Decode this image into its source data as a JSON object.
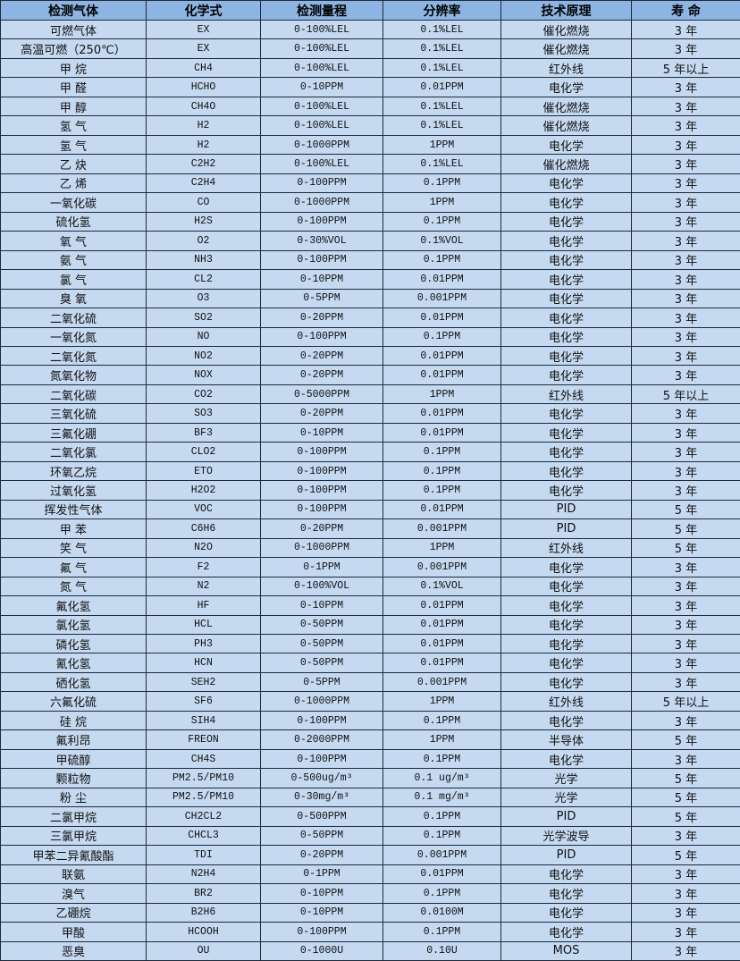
{
  "headers": [
    "检测气体",
    "化学式",
    "检测量程",
    "分辨率",
    "技术原理",
    "寿 命"
  ],
  "rows": [
    [
      "可燃气体",
      "EX",
      "0-100%LEL",
      "0.1%LEL",
      "催化燃烧",
      "3 年"
    ],
    [
      "高温可燃（250℃）",
      "EX",
      "0-100%LEL",
      "0.1%LEL",
      "催化燃烧",
      "3 年"
    ],
    [
      "甲 烷",
      "CH4",
      "0-100%LEL",
      "0.1%LEL",
      "红外线",
      "5 年以上"
    ],
    [
      "甲 醛",
      "HCHO",
      "0-10PPM",
      "0.01PPM",
      "电化学",
      "3 年"
    ],
    [
      "甲 醇",
      "CH4O",
      "0-100%LEL",
      "0.1%LEL",
      "催化燃烧",
      "3 年"
    ],
    [
      "氢 气",
      "H2",
      "0-100%LEL",
      "0.1%LEL",
      "催化燃烧",
      "3 年"
    ],
    [
      "氢 气",
      "H2",
      "0-1000PPM",
      "1PPM",
      "电化学",
      "3 年"
    ],
    [
      "乙 炔",
      "C2H2",
      "0-100%LEL",
      "0.1%LEL",
      "催化燃烧",
      "3 年"
    ],
    [
      "乙 烯",
      "C2H4",
      "0-100PPM",
      "0.1PPM",
      "电化学",
      "3 年"
    ],
    [
      "一氧化碳",
      "CO",
      "0-1000PPM",
      "1PPM",
      "电化学",
      "3 年"
    ],
    [
      "硫化氢",
      "H2S",
      "0-100PPM",
      "0.1PPM",
      "电化学",
      "3 年"
    ],
    [
      "氧 气",
      "O2",
      "0-30%VOL",
      "0.1%VOL",
      "电化学",
      "3 年"
    ],
    [
      "氨 气",
      "NH3",
      "0-100PPM",
      "0.1PPM",
      "电化学",
      "3 年"
    ],
    [
      "氯 气",
      "CL2",
      "0-10PPM",
      "0.01PPM",
      "电化学",
      "3 年"
    ],
    [
      "臭 氧",
      "O3",
      "0-5PPM",
      "0.001PPM",
      "电化学",
      "3 年"
    ],
    [
      "二氧化硫",
      "SO2",
      "0-20PPM",
      "0.01PPM",
      "电化学",
      "3 年"
    ],
    [
      "一氧化氮",
      "NO",
      "0-100PPM",
      "0.1PPM",
      "电化学",
      "3 年"
    ],
    [
      "二氧化氮",
      "NO2",
      "0-20PPM",
      "0.01PPM",
      "电化学",
      "3 年"
    ],
    [
      "氮氧化物",
      "NOX",
      "0-20PPM",
      "0.01PPM",
      "电化学",
      "3 年"
    ],
    [
      "二氧化碳",
      "CO2",
      "0-5000PPM",
      "1PPM",
      "红外线",
      "5 年以上"
    ],
    [
      "三氧化硫",
      "SO3",
      "0-20PPM",
      "0.01PPM",
      "电化学",
      "3 年"
    ],
    [
      "三氟化硼",
      "BF3",
      "0-10PPM",
      "0.01PPM",
      "电化学",
      "3 年"
    ],
    [
      "二氧化氯",
      "CLO2",
      "0-100PPM",
      "0.1PPM",
      "电化学",
      "3 年"
    ],
    [
      "环氧乙烷",
      "ETO",
      "0-100PPM",
      "0.1PPM",
      "电化学",
      "3 年"
    ],
    [
      "过氧化氢",
      "H2O2",
      "0-100PPM",
      "0.1PPM",
      "电化学",
      "3 年"
    ],
    [
      "挥发性气体",
      "VOC",
      "0-100PPM",
      "0.01PPM",
      "PID",
      "5 年"
    ],
    [
      "甲 苯",
      "C6H6",
      "0-20PPM",
      "0.001PPM",
      "PID",
      "5 年"
    ],
    [
      "笑 气",
      "N2O",
      "0-1000PPM",
      "1PPM",
      "红外线",
      "5 年"
    ],
    [
      "氟 气",
      "F2",
      "0-1PPM",
      "0.001PPM",
      "电化学",
      "3 年"
    ],
    [
      "氮 气",
      "N2",
      "0-100%VOL",
      "0.1%VOL",
      "电化学",
      "3 年"
    ],
    [
      "氟化氢",
      "HF",
      "0-10PPM",
      "0.01PPM",
      "电化学",
      "3 年"
    ],
    [
      "氯化氢",
      "HCL",
      "0-50PPM",
      "0.01PPM",
      "电化学",
      "3 年"
    ],
    [
      "磷化氢",
      "PH3",
      "0-50PPM",
      "0.01PPM",
      "电化学",
      "3 年"
    ],
    [
      "氰化氢",
      "HCN",
      "0-50PPM",
      "0.01PPM",
      "电化学",
      "3 年"
    ],
    [
      "硒化氢",
      "SEH2",
      "0-5PPM",
      "0.001PPM",
      "电化学",
      "3 年"
    ],
    [
      "六氟化硫",
      "SF6",
      "0-1000PPM",
      "1PPM",
      "红外线",
      "5 年以上"
    ],
    [
      "硅 烷",
      "SIH4",
      "0-100PPM",
      "0.1PPM",
      "电化学",
      "3 年"
    ],
    [
      "氟利昂",
      "FREON",
      "0-2000PPM",
      "1PPM",
      "半导体",
      "5 年"
    ],
    [
      "甲硫醇",
      "CH4S",
      "0-100PPM",
      "0.1PPM",
      "电化学",
      "3 年"
    ],
    [
      "颗粒物",
      "PM2.5/PM10",
      "0-500ug/m³",
      "0.1 ug/m³",
      "光学",
      "5 年"
    ],
    [
      "粉 尘",
      "PM2.5/PM10",
      "0-30mg/m³",
      "0.1 mg/m³",
      "光学",
      "5 年"
    ],
    [
      "二氯甲烷",
      "CH2CL2",
      "0-500PPM",
      "0.1PPM",
      "PID",
      "5 年"
    ],
    [
      "三氯甲烷",
      "CHCL3",
      "0-50PPM",
      "0.1PPM",
      "光学波导",
      "3 年"
    ],
    [
      "甲苯二异氰酸酯",
      "TDI",
      "0-20PPM",
      "0.001PPM",
      "PID",
      "5 年"
    ],
    [
      "联氨",
      "N2H4",
      "0-1PPM",
      "0.01PPM",
      "电化学",
      "3 年"
    ],
    [
      "溴气",
      "BR2",
      "0-10PPM",
      "0.1PPM",
      "电化学",
      "3 年"
    ],
    [
      "乙硼烷",
      "B2H6",
      "0-10PPM",
      "0.0100M",
      "电化学",
      "3 年"
    ],
    [
      "甲酸",
      "HCOOH",
      "0-100PPM",
      "0.1PPM",
      "电化学",
      "3 年"
    ],
    [
      "恶臭",
      "OU",
      "0-1000U",
      "0.10U",
      "MOS",
      "3 年"
    ]
  ],
  "colors": {
    "header_bg": "#8db4e2",
    "row_bg": "#c5d9f1",
    "border": "#1f2a3a"
  }
}
